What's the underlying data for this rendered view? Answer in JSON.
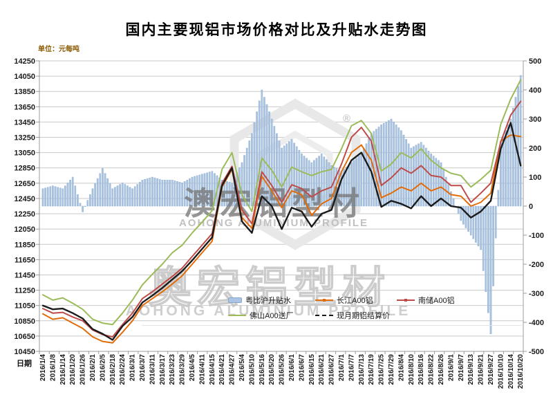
{
  "title": "国内主要现铝市场价格对比及升贴水走势图",
  "unit_label": "单位：元每吨",
  "x_axis_title": "日期",
  "watermark": {
    "cn_center": "澳宏铝型材",
    "cn_lower": "奥宏铝型材",
    "en": "AOHONG ALUMINIUM PROFILE",
    "registered": "®"
  },
  "colors": {
    "grid": "#c9c9c9",
    "axis": "#9b9b9b",
    "background": "#ffffff"
  },
  "chart_data": {
    "type": "combo-bar-line",
    "title": "国内主要现铝市场价格对比及升贴水走势图",
    "left_axis": {
      "label": "单位：元每吨",
      "min": 10450,
      "max": 14250,
      "step": 200
    },
    "right_axis": {
      "min": -500,
      "max": 500,
      "step": 100
    },
    "x_axis": {
      "label": "日期"
    },
    "grid": true,
    "legend_position": "inside-bottom-right",
    "categories": [
      "2016/1/4",
      "2016/1/8",
      "2016/1/14",
      "2016/1/20",
      "2016/1/26",
      "2016/2/1",
      "2016/2/5",
      "2016/2/18",
      "2016/2/24",
      "2016/3/1",
      "2016/3/7",
      "2016/3/11",
      "2016/3/17",
      "2016/3/23",
      "2016/3/29",
      "2016/4/5",
      "2016/4/11",
      "2016/4/15",
      "2016/4/21",
      "2016/4/27",
      "2016/5/4",
      "2016/5/10",
      "2016/5/16",
      "2016/5/20",
      "2016/5/26",
      "2016/6/1",
      "2016/6/7",
      "2016/6/15",
      "2016/6/21",
      "2016/6/27",
      "2016/7/1",
      "2016/7/7",
      "2016/7/13",
      "2016/7/19",
      "2016/7/25",
      "2016/7/29",
      "2016/8/4",
      "2016/8/10",
      "2016/8/16",
      "2016/8/22",
      "2016/8/26",
      "2016/9/1",
      "2016/9/7",
      "2016/9/13",
      "2016/9/21",
      "2016/9/27",
      "2016/10/10",
      "2016/10/14",
      "2016/10/20"
    ],
    "series": [
      {
        "key": "premium",
        "name": "粤比沪升贴水",
        "type": "bar",
        "axis": "right",
        "color": "#aac4e2",
        "border_color": "#86a8cc",
        "values": [
          60,
          70,
          60,
          100,
          -20,
          60,
          130,
          60,
          80,
          60,
          90,
          100,
          90,
          90,
          80,
          100,
          110,
          120,
          90,
          80,
          150,
          250,
          400,
          300,
          200,
          230,
          180,
          150,
          180,
          140,
          120,
          150,
          180,
          250,
          280,
          300,
          260,
          200,
          220,
          180,
          150,
          50,
          -50,
          -100,
          -150,
          -440,
          220,
          300,
          450
        ]
      },
      {
        "key": "changjiang",
        "name": "长江A00铝",
        "type": "line",
        "axis": "left",
        "color": "#e26b0a",
        "values": [
          10940,
          10870,
          10890,
          10820,
          10750,
          10640,
          10580,
          10560,
          10700,
          10850,
          11050,
          11140,
          11230,
          11330,
          11440,
          11590,
          11740,
          11890,
          12600,
          12830,
          12200,
          12060,
          12740,
          12550,
          12330,
          12550,
          12500,
          12230,
          12380,
          12450,
          12800,
          13050,
          13150,
          12950,
          12460,
          12520,
          12600,
          12550,
          12650,
          12550,
          12600,
          12500,
          12480,
          12350,
          12400,
          12520,
          13200,
          13280,
          13260
        ]
      },
      {
        "key": "nanchu",
        "name": "南储A00铝",
        "type": "line",
        "axis": "left",
        "color": "#be4b48",
        "values": [
          11010,
          10950,
          10960,
          10900,
          10850,
          10730,
          10670,
          10640,
          10800,
          10950,
          11140,
          11230,
          11330,
          11430,
          11540,
          11690,
          11840,
          11990,
          12650,
          12870,
          12300,
          12120,
          12800,
          12620,
          12400,
          12630,
          12580,
          12470,
          12550,
          12600,
          12900,
          13250,
          13380,
          13200,
          12620,
          12720,
          12850,
          12780,
          12880,
          12750,
          12730,
          12620,
          12620,
          12400,
          12520,
          12650,
          13190,
          13540,
          13720
        ]
      },
      {
        "key": "foshan",
        "name": "佛山A00送厂",
        "type": "line",
        "axis": "left",
        "color": "#9bbb59",
        "values": [
          11190,
          11120,
          11150,
          11080,
          11000,
          10870,
          10820,
          10800,
          10950,
          11120,
          11320,
          11460,
          11590,
          11740,
          11840,
          12000,
          12140,
          12290,
          12830,
          13050,
          12500,
          12280,
          12980,
          12820,
          12600,
          12860,
          12800,
          12750,
          12800,
          12830,
          13100,
          13400,
          13470,
          13300,
          12810,
          12900,
          13050,
          12980,
          13100,
          12950,
          12850,
          12780,
          12750,
          12600,
          12700,
          12820,
          13420,
          13750,
          14000
        ]
      },
      {
        "key": "settlement",
        "name": "现月期铝结算价",
        "type": "line",
        "axis": "left",
        "color": "#1b1b1b",
        "legend_style": "dashed",
        "values": [
          11050,
          11000,
          11010,
          10950,
          10880,
          10740,
          10680,
          10600,
          10780,
          10900,
          11090,
          11180,
          11280,
          11390,
          11500,
          11640,
          11790,
          11940,
          12620,
          12850,
          12150,
          12000,
          12480,
          12350,
          12050,
          12330,
          12280,
          12080,
          12250,
          12300,
          12700,
          12950,
          13050,
          12800,
          12340,
          12420,
          12380,
          12320,
          12480,
          12350,
          12450,
          12350,
          12330,
          12200,
          12280,
          12420,
          13100,
          13440,
          12880
        ]
      }
    ]
  }
}
